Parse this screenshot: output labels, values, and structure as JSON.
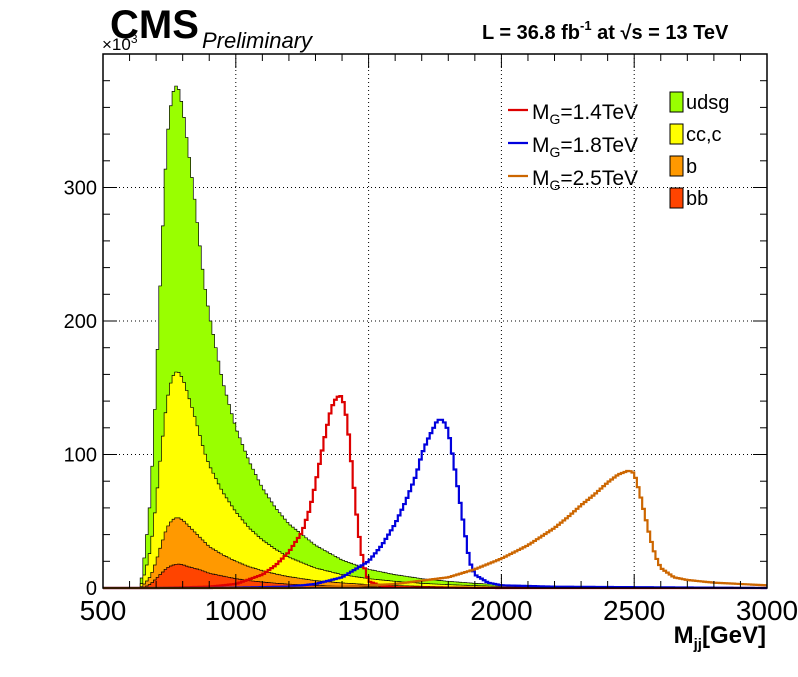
{
  "header": {
    "experiment": "CMS",
    "status": "Preliminary",
    "lumi_prefix": "L = 36.8 fb",
    "lumi_exp": "-1",
    "lumi_mid": " at  ",
    "sqrt_symbol": "√",
    "energy_text": "s = 13 TeV"
  },
  "chart_data": {
    "type": "area",
    "title": "",
    "xlabel_main": "M",
    "xlabel_sub": "jj",
    "xlabel_rest": "[GeV]",
    "ylabel": "",
    "y_multiplier_base": "×10",
    "y_multiplier_exp": "3",
    "xlim": [
      500,
      3000
    ],
    "ylim": [
      0,
      400
    ],
    "x_ticks": [
      500,
      1000,
      1500,
      2000,
      2500,
      3000
    ],
    "y_ticks": [
      0,
      100,
      200,
      300
    ],
    "grid": true,
    "legend_position": "top-right",
    "stacked_backgrounds": [
      {
        "name": "udsg",
        "color": "#99ff00",
        "x": [
          500,
          600,
          640,
          660,
          680,
          700,
          720,
          740,
          760,
          780,
          800,
          820,
          840,
          860,
          880,
          900,
          950,
          1000,
          1050,
          1100,
          1150,
          1200,
          1300,
          1400,
          1500,
          1600,
          1700,
          1800,
          1900,
          2000,
          2200,
          2500,
          3000
        ],
        "y": [
          0,
          0,
          0,
          30,
          70,
          155,
          250,
          335,
          370,
          378,
          360,
          330,
          300,
          265,
          230,
          205,
          155,
          120,
          95,
          75,
          60,
          48,
          32,
          21,
          14,
          10,
          7,
          5,
          3.5,
          2.5,
          1.2,
          0.5,
          0.1
        ]
      },
      {
        "name": "cc,c",
        "color": "#ffff00",
        "x": [
          500,
          600,
          640,
          660,
          680,
          700,
          720,
          740,
          760,
          780,
          800,
          820,
          840,
          860,
          880,
          900,
          950,
          1000,
          1050,
          1100,
          1150,
          1200,
          1300,
          1400,
          1500,
          1600,
          1700,
          1800,
          1900,
          2000,
          2200,
          2500,
          3000
        ],
        "y": [
          0,
          0,
          0,
          13,
          30,
          65,
          105,
          140,
          158,
          163,
          157,
          145,
          132,
          118,
          103,
          92,
          72,
          57,
          45,
          36,
          29,
          23,
          15,
          10,
          7,
          5,
          3.5,
          2.5,
          1.8,
          1.2,
          0.6,
          0.2,
          0.05
        ]
      },
      {
        "name": "b",
        "color": "#ff9900",
        "x": [
          500,
          600,
          640,
          660,
          680,
          700,
          720,
          740,
          760,
          780,
          800,
          820,
          840,
          860,
          880,
          900,
          950,
          1000,
          1050,
          1100,
          1150,
          1200,
          1300,
          1400,
          1500,
          1600,
          1700,
          1800,
          1900,
          2000,
          2200,
          2500,
          3000
        ],
        "y": [
          0,
          0,
          0,
          4,
          9,
          20,
          33,
          45,
          51,
          53,
          51,
          47,
          43,
          39,
          35,
          31,
          25,
          20,
          16,
          13,
          10.5,
          8.5,
          5.5,
          3.8,
          2.6,
          1.8,
          1.3,
          0.9,
          0.6,
          0.4,
          0.2,
          0.08,
          0.02
        ]
      },
      {
        "name": "bb",
        "color": "#ff4400",
        "x": [
          500,
          600,
          640,
          660,
          680,
          700,
          720,
          740,
          760,
          780,
          800,
          820,
          840,
          860,
          880,
          900,
          950,
          1000,
          1050,
          1100,
          1150,
          1200,
          1300,
          1400,
          1500,
          1600,
          1700,
          1800,
          1900,
          2000,
          2200,
          2500,
          3000
        ],
        "y": [
          0,
          0,
          0,
          1,
          3,
          7,
          11,
          15,
          17,
          18,
          17.5,
          16,
          15,
          14,
          12.5,
          11,
          9,
          7,
          5.5,
          4.5,
          3.6,
          2.9,
          1.9,
          1.3,
          0.9,
          0.6,
          0.4,
          0.3,
          0.2,
          0.15,
          0.07,
          0.03,
          0.01
        ]
      }
    ],
    "signals": [
      {
        "name": "M_G=1.4TeV",
        "label_main": "M",
        "label_sub": "G",
        "label_rest": "=1.4TeV",
        "color": "#dd0000",
        "x": [
          500,
          700,
          900,
          1000,
          1100,
          1150,
          1200,
          1250,
          1280,
          1300,
          1320,
          1340,
          1360,
          1380,
          1400,
          1420,
          1440,
          1460,
          1480,
          1500,
          1550,
          1600,
          2000,
          3000
        ],
        "y": [
          0,
          0,
          1,
          3,
          10,
          17,
          27,
          42,
          60,
          78,
          98,
          118,
          135,
          143,
          144,
          125,
          85,
          45,
          18,
          5,
          1.5,
          0.5,
          0,
          0
        ]
      },
      {
        "name": "M_G=1.8TeV",
        "label_main": "M",
        "label_sub": "G",
        "label_rest": "=1.8TeV",
        "color": "#0000dd",
        "x": [
          500,
          900,
          1200,
          1300,
          1400,
          1500,
          1550,
          1600,
          1640,
          1680,
          1700,
          1720,
          1740,
          1760,
          1780,
          1800,
          1820,
          1840,
          1860,
          1880,
          1900,
          1950,
          2000,
          2200,
          3000
        ],
        "y": [
          0,
          0,
          1,
          3,
          8,
          20,
          32,
          48,
          65,
          85,
          100,
          110,
          118,
          126,
          126,
          118,
          95,
          70,
          45,
          20,
          10,
          4,
          2,
          1,
          0
        ]
      },
      {
        "name": "M_G=2.5TeV",
        "label_main": "M",
        "label_sub": "G",
        "label_rest": "=2.5TeV",
        "color": "#cc6600",
        "x": [
          500,
          1200,
          1400,
          1600,
          1800,
          1900,
          2000,
          2100,
          2200,
          2250,
          2300,
          2350,
          2400,
          2440,
          2480,
          2500,
          2520,
          2540,
          2560,
          2580,
          2600,
          2650,
          2700,
          2800,
          3000
        ],
        "y": [
          0,
          0,
          1,
          3,
          8,
          14,
          22,
          32,
          45,
          53,
          62,
          70,
          79,
          85,
          88,
          86,
          72,
          55,
          38,
          24,
          15,
          8,
          6,
          4,
          2
        ]
      }
    ]
  }
}
